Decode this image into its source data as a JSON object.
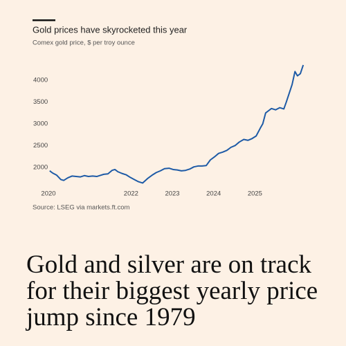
{
  "chart_data": {
    "type": "line",
    "title": "Gold prices have skyrocketed this year",
    "subtitle": "Comex gold price, $ per troy ounce",
    "source": "Source: LSEG via markets.ft.com",
    "headline": [
      "Gold and silver are on track",
      "for their biggest yearly price",
      "jump since 1979"
    ],
    "color": "#1d5aa6",
    "grid": false,
    "xlim": [
      2020,
      2026.2
    ],
    "xticks": [
      2020,
      2022,
      2023,
      2024,
      2025
    ],
    "ylim": [
      1600,
      4450
    ],
    "yticks": [
      2000,
      2500,
      3000,
      3500,
      4000
    ],
    "x": [
      2020.03,
      2020.1,
      2020.2,
      2020.3,
      2020.37,
      2020.47,
      2020.57,
      2020.67,
      2020.77,
      2020.87,
      2020.97,
      2021.07,
      2021.17,
      2021.27,
      2021.34,
      2021.44,
      2021.54,
      2021.61,
      2021.68,
      2021.78,
      2021.88,
      2021.98,
      2022.08,
      2022.18,
      2022.28,
      2022.35,
      2022.41,
      2022.51,
      2022.61,
      2022.71,
      2022.81,
      2022.92,
      2023.02,
      2023.12,
      2023.22,
      2023.32,
      2023.42,
      2023.52,
      2023.62,
      2023.72,
      2023.82,
      2023.92,
      2024.02,
      2024.12,
      2024.22,
      2024.32,
      2024.42,
      2024.52,
      2024.62,
      2024.73,
      2024.83,
      2024.93,
      2025.03,
      2025.13,
      2025.19,
      2025.26,
      2025.33,
      2025.4,
      2025.5,
      2025.6,
      2025.7,
      2025.76,
      2025.83,
      2025.9,
      2025.97,
      2026.03,
      2026.1,
      2026.17
    ],
    "values": [
      1920,
      1870,
      1820,
      1720,
      1700,
      1760,
      1800,
      1790,
      1780,
      1810,
      1790,
      1800,
      1790,
      1820,
      1840,
      1850,
      1930,
      1950,
      1900,
      1860,
      1830,
      1770,
      1720,
      1670,
      1640,
      1700,
      1750,
      1820,
      1880,
      1920,
      1970,
      1980,
      1950,
      1940,
      1920,
      1930,
      1960,
      2010,
      2030,
      2030,
      2040,
      2170,
      2240,
      2320,
      2350,
      2390,
      2460,
      2500,
      2580,
      2640,
      2620,
      2660,
      2720,
      2900,
      3000,
      3250,
      3300,
      3350,
      3320,
      3370,
      3340,
      3500,
      3700,
      3900,
      4200,
      4100,
      4150,
      4350
    ]
  }
}
